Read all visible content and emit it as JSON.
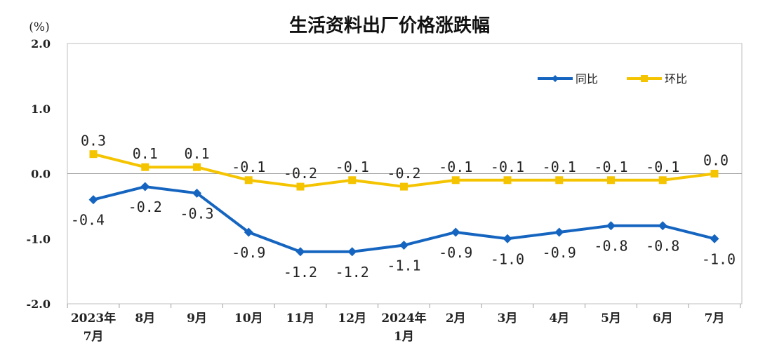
{
  "chart_data": {
    "type": "line",
    "title": "生活资料出厂价格涨跌幅",
    "unit_label": "(%)",
    "ylim": [
      -2.0,
      2.0
    ],
    "yticks": [
      "2.0",
      "1.0",
      "0.0",
      "-1.0",
      "-2.0"
    ],
    "ytick_values": [
      2.0,
      1.0,
      0.0,
      -1.0,
      -2.0
    ],
    "categories": [
      [
        "2023年",
        "7月"
      ],
      [
        "8月"
      ],
      [
        "9月"
      ],
      [
        "10月"
      ],
      [
        "11月"
      ],
      [
        "12月"
      ],
      [
        "2024年",
        "1月"
      ],
      [
        "2月"
      ],
      [
        "3月"
      ],
      [
        "4月"
      ],
      [
        "5月"
      ],
      [
        "6月"
      ],
      [
        "7月"
      ]
    ],
    "series": [
      {
        "name": "同比",
        "color": "#1565C0",
        "marker": "diamond",
        "values": [
          -0.4,
          -0.2,
          -0.3,
          -0.9,
          -1.2,
          -1.2,
          -1.1,
          -0.9,
          -1.0,
          -0.9,
          -0.8,
          -0.8,
          -1.0
        ],
        "labels": [
          "-0.4",
          "-0.2",
          "-0.3",
          "-0.9",
          "-1.2",
          "-1.2",
          "-1.1",
          "-0.9",
          "-1.0",
          "-0.9",
          "-0.8",
          "-0.8",
          "-1.0"
        ]
      },
      {
        "name": "环比",
        "color": "#F5C400",
        "marker": "square",
        "values": [
          0.3,
          0.1,
          0.1,
          -0.1,
          -0.2,
          -0.1,
          -0.2,
          -0.1,
          -0.1,
          -0.1,
          -0.1,
          -0.1,
          0.0
        ],
        "labels": [
          "0.3",
          "0.1",
          "0.1",
          "-0.1",
          "-0.2",
          "-0.1",
          "-0.2",
          "-0.1",
          "-0.1",
          "-0.1",
          "-0.1",
          "-0.1",
          "0.0"
        ]
      }
    ],
    "legend_position": "top-right",
    "grid": false
  }
}
